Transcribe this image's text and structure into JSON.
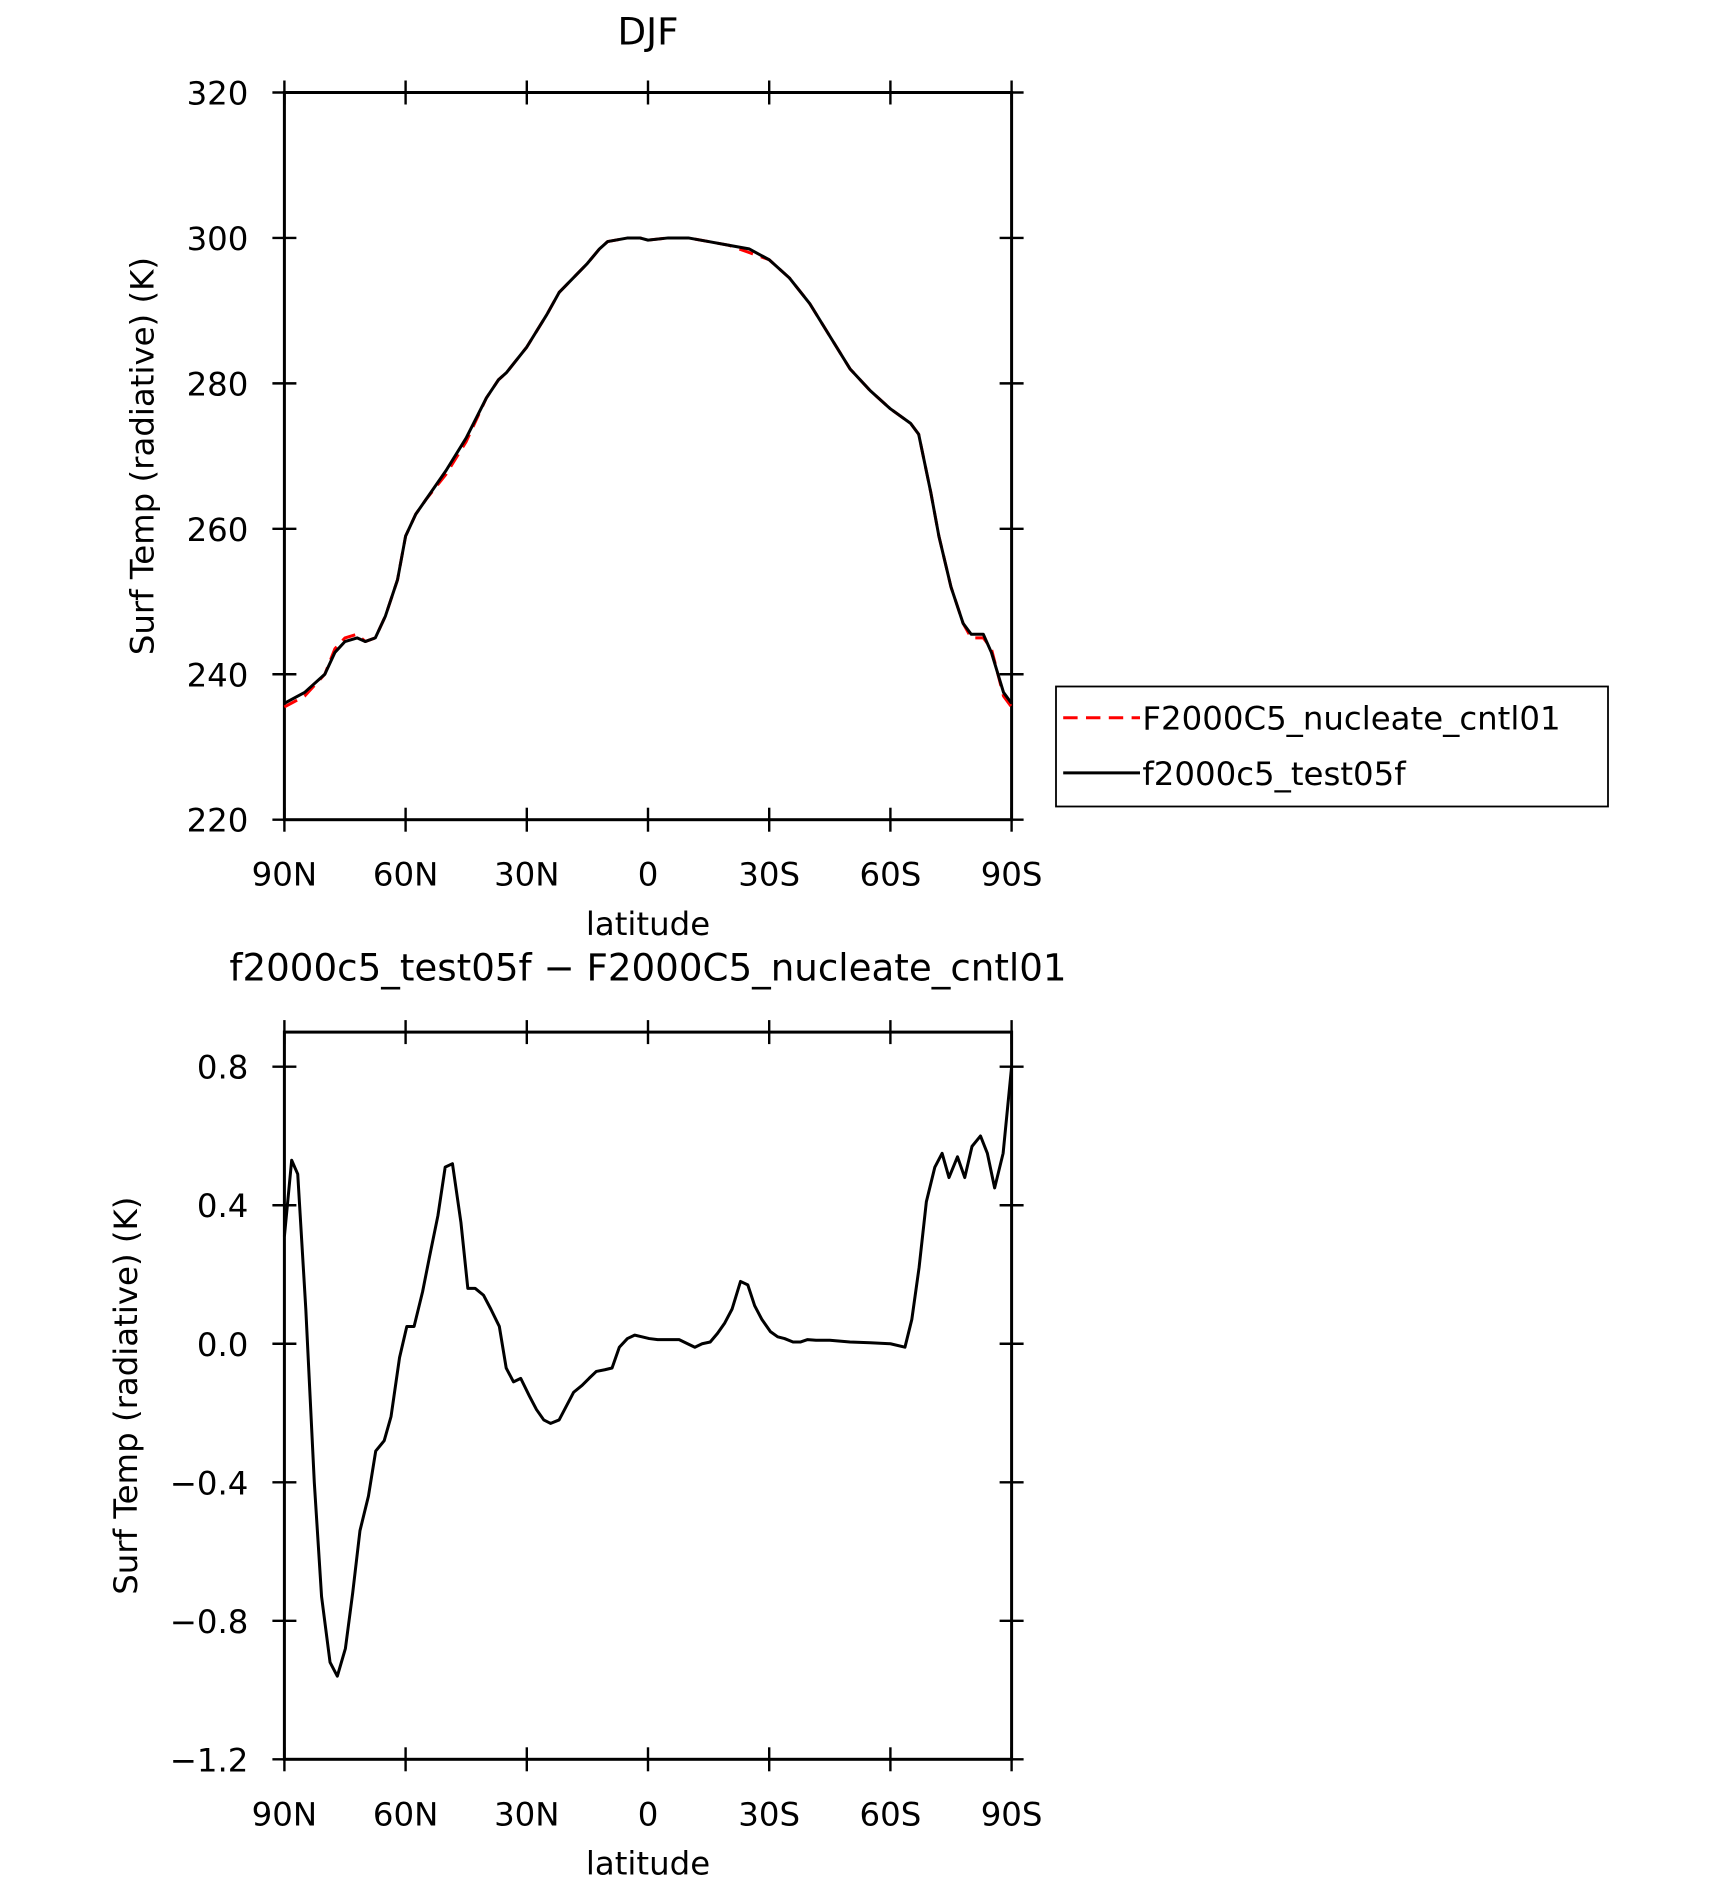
{
  "chart_data": [
    {
      "type": "line",
      "title": "DJF",
      "xlabel": "latitude",
      "ylabel": "Surf Temp (radiative) (K)",
      "x": [
        90,
        85,
        80,
        77.5,
        75,
        72,
        70,
        67.5,
        65,
        62,
        60,
        57.5,
        55,
        50,
        45,
        40,
        37,
        35,
        30,
        25,
        22,
        15,
        12,
        10,
        5,
        2,
        0,
        -5,
        -8,
        -10,
        -15,
        -20,
        -25,
        -30,
        -35,
        -40,
        -45,
        -50,
        -55,
        -60,
        -65,
        -67,
        -70,
        -72,
        -75,
        -78,
        -80,
        -83,
        -85,
        -88,
        -90
      ],
      "series": [
        {
          "name": "F2000C5_nucleate_cntl01",
          "color": "#ff0000",
          "line_style": "dashed",
          "values": [
            235.5,
            237,
            240,
            243.5,
            245,
            245.5,
            244.5,
            245,
            248,
            253,
            259,
            262,
            264,
            267.5,
            272,
            278,
            280.5,
            281.5,
            285,
            289.5,
            292.5,
            296.5,
            298.5,
            299.5,
            300,
            300,
            299.7,
            300,
            300,
            300,
            299.5,
            299,
            298,
            297,
            294.5,
            291,
            286.5,
            282,
            279,
            276.5,
            274.5,
            273,
            265,
            259,
            252,
            247,
            245,
            245,
            243.5,
            237,
            235.5
          ]
        },
        {
          "name": "f2000c5_test05f",
          "color": "#000000",
          "line_style": "solid",
          "values": [
            236,
            237.5,
            240,
            243,
            244.5,
            245,
            244.5,
            245,
            248,
            253,
            259,
            262,
            264,
            268,
            272.5,
            278,
            280.5,
            281.5,
            285,
            289.5,
            292.5,
            296.5,
            298.5,
            299.5,
            300,
            300,
            299.7,
            300,
            300,
            300,
            299.5,
            299,
            298.5,
            297,
            294.5,
            291,
            286.5,
            282,
            279,
            276.5,
            274.5,
            273,
            265,
            259,
            252,
            247,
            245.5,
            245.5,
            243,
            237.5,
            236
          ]
        }
      ],
      "xlim": [
        90,
        -90
      ],
      "xticks": [
        {
          "value": 90,
          "label": "90N"
        },
        {
          "value": 60,
          "label": "60N"
        },
        {
          "value": 30,
          "label": "30N"
        },
        0,
        {
          "value": -30,
          "label": "30S"
        },
        {
          "value": -60,
          "label": "60S"
        },
        {
          "value": -90,
          "label": "90S"
        }
      ],
      "ylim": [
        220,
        320
      ],
      "yticks": [
        220,
        240,
        260,
        280,
        300,
        320
      ],
      "legend_position": "right"
    },
    {
      "type": "line",
      "title": "f2000c5_test05f − F2000C5_nucleate_cntl01",
      "xlabel": "latitude",
      "ylabel": "Surf Temp (radiative) (K)",
      "x": [
        90,
        88.2,
        86.7,
        84.7,
        82.6,
        80.8,
        78.7,
        76.9,
        74.9,
        73.1,
        71.3,
        69.2,
        67.4,
        65.3,
        63.6,
        61.5,
        59.7,
        57.9,
        55.8,
        54.1,
        52.0,
        50.2,
        48.4,
        46.3,
        44.6,
        42.8,
        40.7,
        38.9,
        36.8,
        35.1,
        33.3,
        31.5,
        29.4,
        27.6,
        25.8,
        24.1,
        22.0,
        20.2,
        18.4,
        16.3,
        14.6,
        12.8,
        10.7,
        8.9,
        7.1,
        5.1,
        3.3,
        1.5,
        -0.3,
        -2.4,
        -4.2,
        -5.9,
        -7.7,
        -9.8,
        -11.6,
        -13.4,
        -15.4,
        -17.2,
        -19.0,
        -20.8,
        -22.9,
        -24.7,
        -26.4,
        -28.2,
        -30.3,
        -32.1,
        -33.8,
        -35.9,
        -37.7,
        -39.5,
        -41.6,
        -45,
        -50,
        -55,
        -60,
        -63.6,
        -65.3,
        -67.1,
        -68.9,
        -71.0,
        -72.8,
        -74.5,
        -76.6,
        -78.4,
        -80.2,
        -82.3,
        -84.0,
        -85.8,
        -87.9,
        -90
      ],
      "series": [
        {
          "name": "f2000c5_test05f",
          "color": "#000000",
          "line_style": "solid",
          "values": [
            0.31,
            0.53,
            0.49,
            0.1,
            -0.4,
            -0.73,
            -0.92,
            -0.96,
            -0.88,
            -0.72,
            -0.54,
            -0.44,
            -0.31,
            -0.28,
            -0.21,
            -0.04,
            0.05,
            0.05,
            0.15,
            0.25,
            0.37,
            0.51,
            0.52,
            0.35,
            0.16,
            0.16,
            0.14,
            0.1,
            0.05,
            -0.07,
            -0.11,
            -0.1,
            -0.15,
            -0.19,
            -0.22,
            -0.23,
            -0.22,
            -0.18,
            -0.14,
            -0.12,
            -0.1,
            -0.08,
            -0.075,
            -0.07,
            -0.01,
            0.015,
            0.025,
            0.02,
            0.015,
            0.012,
            0.012,
            0.012,
            0.012,
            0.0,
            -0.01,
            0.0,
            0.005,
            0.03,
            0.06,
            0.1,
            0.18,
            0.17,
            0.11,
            0.07,
            0.035,
            0.02,
            0.015,
            0.005,
            0.005,
            0.012,
            0.01,
            0.01,
            0.005,
            0.003,
            0.0,
            -0.01,
            0.07,
            0.22,
            0.41,
            0.51,
            0.55,
            0.48,
            0.54,
            0.48,
            0.57,
            0.6,
            0.55,
            0.45,
            0.55,
            0.8
          ]
        }
      ],
      "xlim": [
        90,
        -90
      ],
      "xticks": [
        {
          "value": 90,
          "label": "90N"
        },
        {
          "value": 60,
          "label": "60N"
        },
        {
          "value": 30,
          "label": "30N"
        },
        0,
        {
          "value": -30,
          "label": "30S"
        },
        {
          "value": -60,
          "label": "60S"
        },
        {
          "value": -90,
          "label": "90S"
        }
      ],
      "ylim": [
        -1.2,
        0.9
      ],
      "yticks": [
        {
          "value": -1.2,
          "label": "−1.2"
        },
        {
          "value": -0.8,
          "label": "−0.8"
        },
        {
          "value": -0.4,
          "label": "−0.4"
        },
        {
          "value": 0,
          "label": "0.0"
        },
        0.4,
        0.8
      ]
    }
  ]
}
